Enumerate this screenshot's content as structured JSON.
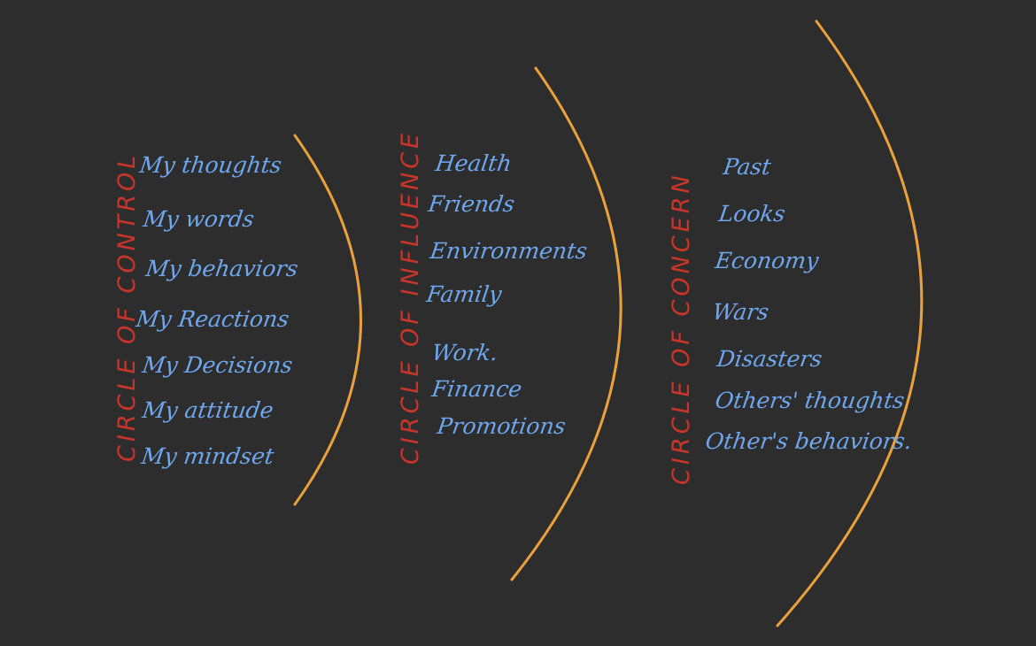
{
  "colors": {
    "background": "#2d2d2d",
    "heading": "#c9352a",
    "item": "#6fa7ee",
    "arc": "#e9a13b"
  },
  "circles": [
    {
      "heading": "CIRCLE OF CONTROL",
      "items": [
        "My thoughts",
        "My words",
        "My behaviors",
        "My Reactions",
        "My Decisions",
        "My attitude",
        "My mindset"
      ]
    },
    {
      "heading": "CIRCLE OF INFLUENCE",
      "items": [
        "Health",
        "Friends",
        "Environments",
        "Family",
        "Work.",
        "Finance",
        "Promotions"
      ]
    },
    {
      "heading": "CIRCLE OF CONCERN",
      "items": [
        "Past",
        "Looks",
        "Economy",
        "Wars",
        "Disasters",
        "Others' thoughts",
        "Other's behaviors."
      ]
    }
  ]
}
